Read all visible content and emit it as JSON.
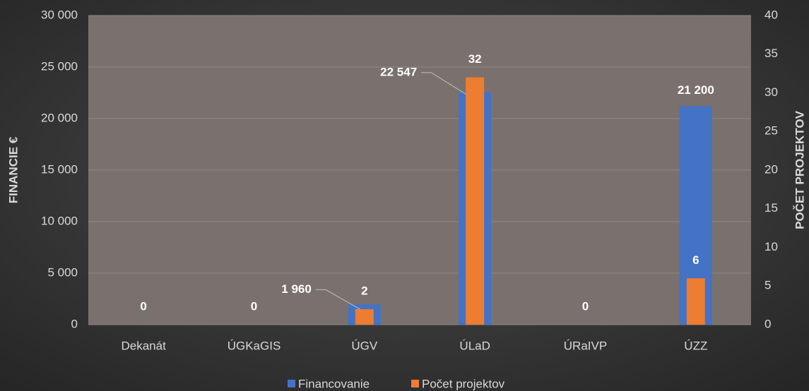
{
  "chart_data": {
    "type": "bar",
    "categories": [
      "Dekanát",
      "ÚGKaGIS",
      "ÚGV",
      "ÚLaD",
      "ÚRaIVP",
      "ÚZZ"
    ],
    "series": [
      {
        "name": "Financovanie",
        "color": "#4472c4",
        "values": [
          0,
          0,
          1960,
          22547,
          0,
          21200
        ],
        "value_labels": [
          "0",
          "0",
          "1 960",
          "22 547",
          "0",
          "21 200"
        ]
      },
      {
        "name": "Počet projektov",
        "color": "#ed7d31",
        "axis": "y2",
        "values": [
          0,
          0,
          2,
          32,
          0,
          6
        ],
        "value_labels": [
          null,
          null,
          "2",
          "32",
          null,
          "6"
        ]
      }
    ],
    "ylabel": "FINANCIE €",
    "y2label": "POČET PROJEKTOV",
    "ylim": [
      0,
      30000
    ],
    "yticks": [
      0,
      {
        "value": 5000,
        "label": "5 000"
      },
      {
        "value": 10000,
        "label": "10 000"
      },
      {
        "value": 15000,
        "label": "15 000"
      },
      {
        "value": 20000,
        "label": "20 000"
      },
      {
        "value": 25000,
        "label": "25 000"
      },
      {
        "value": 30000,
        "label": "30 000"
      }
    ],
    "y2lim": [
      0,
      40
    ],
    "y2ticks": [
      0,
      5,
      10,
      15,
      20,
      25,
      30,
      35,
      40
    ],
    "grid": true,
    "legend": "bottom"
  }
}
